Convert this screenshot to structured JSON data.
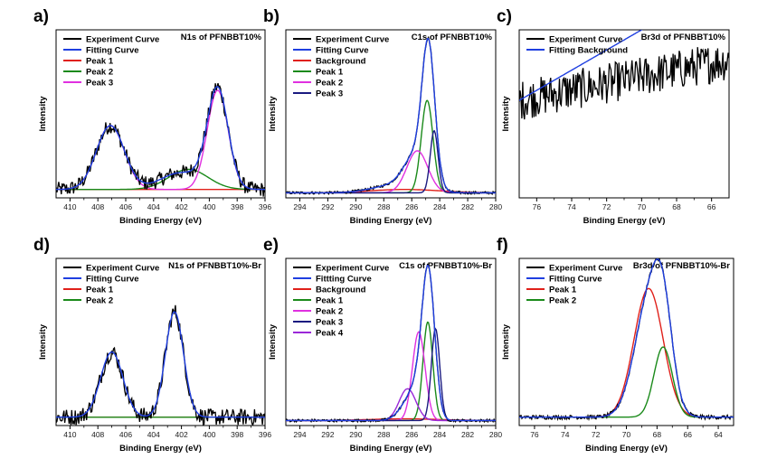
{
  "chart_data": [
    {
      "id": "a",
      "panel_label": "a)",
      "type": "line",
      "title": "N1s of PFNBBT10%",
      "xlabel": "Binding Energy (eV)",
      "ylabel": "Intensity",
      "xlim": [
        411,
        396
      ],
      "ylim": [
        0,
        1
      ],
      "xticks": [
        410,
        408,
        406,
        404,
        402,
        400,
        398,
        396
      ],
      "legend_placement": "top-left",
      "series": [
        {
          "name": "Experiment Curve",
          "color": "#000000",
          "noise": 0.045,
          "baseline": 0.05,
          "peaks": [
            [
              407.1,
              0.38,
              1.0
            ],
            [
              399.4,
              0.59,
              0.75
            ],
            [
              402.0,
              0.1,
              1.5
            ]
          ]
        },
        {
          "name": "Fitting Curve",
          "color": "#1f3fe0",
          "baseline": 0.05,
          "peaks": [
            [
              407.1,
              0.38,
              1.0
            ],
            [
              399.4,
              0.59,
              0.75
            ],
            [
              402.0,
              0.1,
              1.5
            ]
          ]
        },
        {
          "name": "Peak 1",
          "color": "#e0201a",
          "baseline": 0.05,
          "peaks": [
            [
              407.1,
              0.0,
              1.0
            ]
          ]
        },
        {
          "name": "Peak 2",
          "color": "#1a8a1a",
          "baseline": 0.05,
          "peaks": [
            [
              401.5,
              0.12,
              1.4
            ]
          ]
        },
        {
          "name": "Peak 3",
          "color": "#e030e0",
          "baseline": 0.05,
          "peaks": [
            [
              407.1,
              0.38,
              1.0
            ],
            [
              399.4,
              0.59,
              0.75
            ]
          ]
        }
      ]
    },
    {
      "id": "b",
      "panel_label": "b)",
      "type": "line",
      "title": "C1s of PFNBBT10%",
      "xlabel": "Binding Energy (eV)",
      "ylabel": "Intensity",
      "xlim": [
        295,
        280
      ],
      "ylim": [
        0,
        1
      ],
      "xticks": [
        294,
        292,
        290,
        288,
        286,
        284,
        282,
        280
      ],
      "legend_placement": "top-left",
      "series": [
        {
          "name": "Experiment Curve",
          "color": "#000000",
          "noise": 0.008,
          "baseline": 0.03,
          "peaks": [
            [
              284.8,
              0.76,
              0.45
            ],
            [
              285.6,
              0.22,
              0.9
            ],
            [
              287.5,
              0.04,
              1.5
            ]
          ]
        },
        {
          "name": "Fitting Curve",
          "color": "#1f3fe0",
          "baseline": 0.03,
          "peaks": [
            [
              284.8,
              0.76,
              0.45
            ],
            [
              285.6,
              0.22,
              0.9
            ],
            [
              287.5,
              0.04,
              1.5
            ]
          ]
        },
        {
          "name": "Background",
          "color": "#e0201a",
          "baseline": 0.03,
          "peaks": [
            [
              286.5,
              0.02,
              2.5
            ]
          ]
        },
        {
          "name": "Peak 1",
          "color": "#1a8a1a",
          "baseline": 0.03,
          "peaks": [
            [
              284.9,
              0.55,
              0.42
            ]
          ]
        },
        {
          "name": "Peak 2",
          "color": "#e030e0",
          "baseline": 0.03,
          "peaks": [
            [
              285.6,
              0.25,
              0.75
            ]
          ]
        },
        {
          "name": "Peak 3",
          "color": "#1a1a80",
          "baseline": 0.03,
          "peaks": [
            [
              284.4,
              0.37,
              0.28
            ]
          ]
        }
      ]
    },
    {
      "id": "c",
      "panel_label": "c)",
      "type": "line",
      "title": "Br3d of PFNBBT10%",
      "xlabel": "Binding Energy (eV)",
      "ylabel": "Intensity",
      "xlim": [
        77,
        65
      ],
      "ylim": [
        0,
        1
      ],
      "xticks": [
        76,
        74,
        72,
        70,
        68,
        66
      ],
      "legend_placement": "top-left",
      "series": [
        {
          "name": "Experiment Curve",
          "color": "#000000",
          "noise": 0.12,
          "baseline": 0.58,
          "slope": 0.001,
          "peaks": []
        },
        {
          "name": "Fitting Background",
          "color": "#1f3fe0",
          "baseline": 0.58,
          "slope": 0.003,
          "peaks": []
        }
      ]
    },
    {
      "id": "d",
      "panel_label": "d)",
      "type": "line",
      "title": "N1s of PFNBBT10%-Br",
      "xlabel": "Binding Energy (eV)",
      "ylabel": "Intensity",
      "xlim": [
        411,
        396
      ],
      "ylim": [
        0,
        1
      ],
      "xticks": [
        410,
        408,
        406,
        404,
        402,
        400,
        398,
        396
      ],
      "legend_placement": "top-left",
      "series": [
        {
          "name": "Experiment Curve",
          "color": "#000000",
          "noise": 0.05,
          "baseline": 0.05,
          "peaks": [
            [
              407.0,
              0.39,
              0.8
            ],
            [
              402.5,
              0.63,
              0.65
            ]
          ]
        },
        {
          "name": "Fitting Curve",
          "color": "#1f3fe0",
          "baseline": 0.05,
          "peaks": [
            [
              407.0,
              0.39,
              0.8
            ],
            [
              402.5,
              0.63,
              0.65
            ]
          ]
        },
        {
          "name": "Peak 1",
          "color": "#e0201a",
          "baseline": 0.05,
          "peaks": [
            [
              402.5,
              0.0,
              0.65
            ]
          ]
        },
        {
          "name": "Peak 2",
          "color": "#1a8a1a",
          "baseline": 0.05,
          "peaks": [
            [
              407.0,
              0.0,
              0.8
            ]
          ]
        }
      ]
    },
    {
      "id": "e",
      "panel_label": "e)",
      "type": "line",
      "title": "C1s of PFNBBT10%-Br",
      "xlabel": "Binding Energy (eV)",
      "ylabel": "Intensity",
      "xlim": [
        295,
        280
      ],
      "ylim": [
        0,
        1
      ],
      "xticks": [
        294,
        292,
        290,
        288,
        286,
        284,
        282,
        280
      ],
      "legend_placement": "top-left",
      "series": [
        {
          "name": "Experiment Curve",
          "color": "#000000",
          "noise": 0.008,
          "baseline": 0.03,
          "peaks": [
            [
              284.8,
              0.82,
              0.45
            ],
            [
              286.2,
              0.1,
              0.7
            ],
            [
              285.4,
              0.15,
              0.6
            ]
          ]
        },
        {
          "name": "Fittting Curve",
          "color": "#1f3fe0",
          "baseline": 0.03,
          "peaks": [
            [
              284.8,
              0.82,
              0.45
            ],
            [
              286.2,
              0.1,
              0.7
            ],
            [
              285.4,
              0.15,
              0.6
            ]
          ]
        },
        {
          "name": "Background",
          "color": "#e0201a",
          "baseline": 0.03,
          "peaks": [
            [
              286.5,
              0.01,
              2.5
            ]
          ]
        },
        {
          "name": "Peak 1",
          "color": "#1a8a1a",
          "baseline": 0.03,
          "peaks": [
            [
              284.85,
              0.59,
              0.35
            ]
          ]
        },
        {
          "name": "Peak 2",
          "color": "#e030e0",
          "baseline": 0.03,
          "peaks": [
            [
              285.5,
              0.53,
              0.45
            ]
          ]
        },
        {
          "name": "Peak 3",
          "color": "#1a1a80",
          "baseline": 0.03,
          "peaks": [
            [
              284.3,
              0.55,
              0.3
            ]
          ]
        },
        {
          "name": "Peak 4",
          "color": "#9a28d8",
          "baseline": 0.03,
          "peaks": [
            [
              286.3,
              0.19,
              0.6
            ]
          ]
        }
      ]
    },
    {
      "id": "f",
      "panel_label": "f)",
      "type": "line",
      "title": "Br3d of PFNBBT10%-Br",
      "xlabel": "Binding Energy (eV)",
      "ylabel": "Intensity",
      "xlim": [
        77,
        63
      ],
      "ylim": [
        0,
        1
      ],
      "xticks": [
        76,
        74,
        72,
        70,
        68,
        66,
        64
      ],
      "legend_placement": "top-left",
      "series": [
        {
          "name": "Experiment Curve",
          "color": "#000000",
          "noise": 0.012,
          "baseline": 0.05,
          "peaks": [
            [
              68.5,
              0.7,
              0.95
            ],
            [
              67.6,
              0.42,
              0.6
            ]
          ]
        },
        {
          "name": "Fitting Curve",
          "color": "#1f3fe0",
          "baseline": 0.05,
          "peaks": [
            [
              68.5,
              0.7,
              0.95
            ],
            [
              67.6,
              0.42,
              0.6
            ]
          ]
        },
        {
          "name": "Peak 1",
          "color": "#e0201a",
          "baseline": 0.05,
          "peaks": [
            [
              68.55,
              0.77,
              0.95
            ]
          ]
        },
        {
          "name": "Peak 2",
          "color": "#1a8a1a",
          "baseline": 0.05,
          "peaks": [
            [
              67.6,
              0.42,
              0.6
            ]
          ]
        }
      ]
    }
  ]
}
